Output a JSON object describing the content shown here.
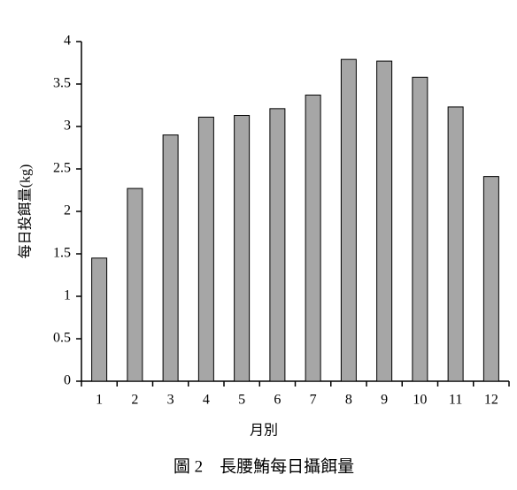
{
  "chart_data": {
    "type": "bar",
    "title": "圖 2　長腰鮪每日攝餌量",
    "x_label": "月別",
    "y_label": "每日投餌量(kg)",
    "categories": [
      "1",
      "2",
      "3",
      "4",
      "5",
      "6",
      "7",
      "8",
      "9",
      "10",
      "11",
      "12"
    ],
    "values": [
      1.45,
      2.27,
      2.9,
      3.11,
      3.13,
      3.21,
      3.37,
      3.79,
      3.77,
      3.58,
      3.23,
      2.41
    ],
    "color": "#a6a6a6",
    "ylim": [
      0,
      4
    ],
    "yticks": [
      0,
      0.5,
      1,
      1.5,
      2,
      2.5,
      3,
      3.5,
      4
    ],
    "grid": false
  }
}
